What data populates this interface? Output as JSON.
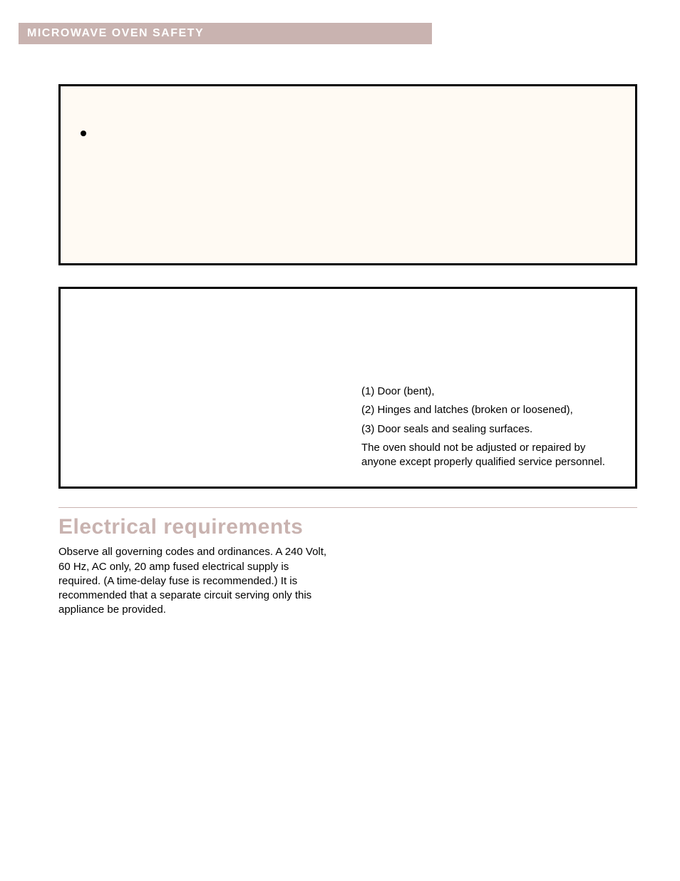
{
  "header": {
    "section_label": "MICROWAVE OVEN SAFETY"
  },
  "colors": {
    "bar_bg": "#c9b3b0",
    "bar_text": "#ffffff",
    "box1_bg": "#fffaf3",
    "box_border": "#000000",
    "heading": "#c9b3b0",
    "rule": "#c9b3b0",
    "body_text": "#000000"
  },
  "box2": {
    "right_lines": [
      "(1) Door (bent),",
      "(2) Hinges and latches (broken or loosened),",
      "(3) Door seals and sealing surfaces."
    ],
    "right_note": "The oven should not be adjusted or repaired by anyone except properly qualified service personnel."
  },
  "electrical": {
    "heading": "Electrical requirements",
    "body": "Observe all governing codes and ordinances. A 240 Volt, 60 Hz, AC only, 20 amp fused electrical supply is required. (A time-delay fuse is recommended.) It is recommended that a separate circuit serving only this appliance be provided."
  },
  "typography": {
    "section_bar_fontsize": 16,
    "heading_fontsize": 30,
    "body_fontsize": 15
  }
}
